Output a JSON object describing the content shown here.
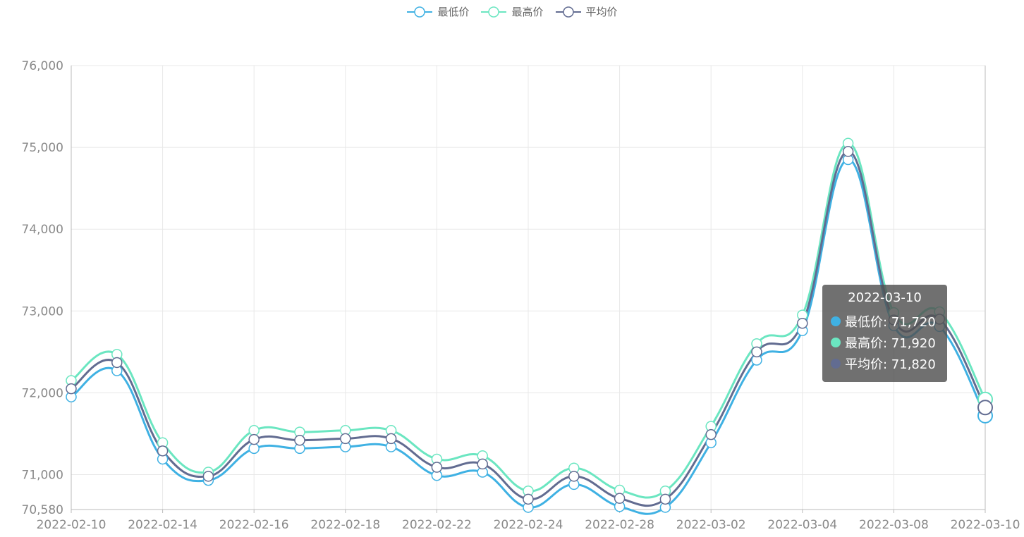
{
  "chart_data": {
    "type": "line",
    "x": [
      "2022-02-10",
      "2022-02-11",
      "2022-02-14",
      "2022-02-15",
      "2022-02-16",
      "2022-02-17",
      "2022-02-18",
      "2022-02-21",
      "2022-02-22",
      "2022-02-23",
      "2022-02-24",
      "2022-02-25",
      "2022-02-28",
      "2022-03-01",
      "2022-03-02",
      "2022-03-03",
      "2022-03-04",
      "2022-03-07",
      "2022-03-08",
      "2022-03-09",
      "2022-03-10"
    ],
    "xticks": [
      "2022-02-10",
      "2022-02-14",
      "2022-02-16",
      "2022-02-18",
      "2022-02-22",
      "2022-02-24",
      "2022-02-28",
      "2022-03-02",
      "2022-03-04",
      "2022-03-08",
      "2022-03-10"
    ],
    "yticks": [
      76000,
      75000,
      74000,
      73000,
      72000,
      71000,
      70580
    ],
    "ylim": [
      70580,
      76000
    ],
    "series": [
      {
        "name": "最低价",
        "color": "#3fb1e3",
        "values": [
          71950,
          72270,
          71190,
          70930,
          71320,
          71320,
          71340,
          71340,
          70990,
          71030,
          70600,
          70880,
          70610,
          70600,
          71390,
          72400,
          72760,
          74850,
          72820,
          72810,
          71720
        ]
      },
      {
        "name": "最高价",
        "color": "#6be6c1",
        "values": [
          72150,
          72470,
          71390,
          71030,
          71540,
          71520,
          71540,
          71540,
          71190,
          71230,
          70800,
          71080,
          70810,
          70800,
          71590,
          72600,
          72950,
          75050,
          72980,
          72990,
          71920
        ]
      },
      {
        "name": "平均价",
        "color": "#626c91",
        "values": [
          72050,
          72370,
          71290,
          70980,
          71430,
          71420,
          71440,
          71440,
          71090,
          71130,
          70700,
          70980,
          70710,
          70700,
          71490,
          72500,
          72850,
          74950,
          72890,
          72900,
          71820
        ]
      }
    ],
    "tooltip": {
      "title": "2022-03-10",
      "rows": [
        {
          "label": "最低价: 71,720"
        },
        {
          "label": "最高价: 71,920"
        },
        {
          "label": "平均价: 71,820"
        }
      ]
    }
  }
}
